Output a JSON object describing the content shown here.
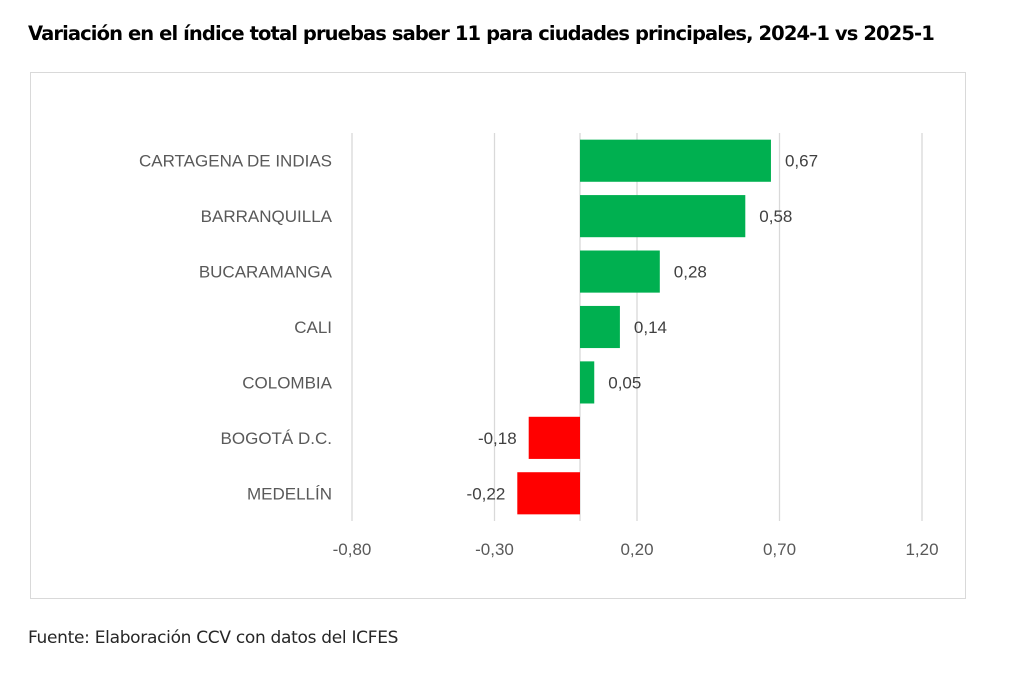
{
  "title": "Variación en el índice total pruebas saber 11 para ciudades principales, 2024-1 vs 2025-1",
  "source": "Fuente: Elaboración CCV con datos del ICFES",
  "colors": {
    "positive": "#00B050",
    "negative": "#FF0000",
    "grid": "#d9d9d9"
  },
  "chart_data": {
    "type": "bar",
    "orientation": "horizontal",
    "title": "Variación en el índice total pruebas saber 11 para ciudades principales, 2024-1 vs 2025-1",
    "xlabel": "",
    "ylabel": "",
    "categories": [
      "CARTAGENA DE INDIAS",
      "BARRANQUILLA",
      "BUCARAMANGA",
      "CALI",
      "COLOMBIA",
      "BOGOTÁ D.C.",
      "MEDELLÍN"
    ],
    "values": [
      0.67,
      0.58,
      0.28,
      0.14,
      0.05,
      -0.18,
      -0.22
    ],
    "value_labels": [
      "0,67",
      "0,58",
      "0,28",
      "0,14",
      "0,05",
      "-0,18",
      "-0,22"
    ],
    "xlim": [
      -0.8,
      1.2
    ],
    "xticks": [
      -0.8,
      -0.3,
      0.2,
      0.7,
      1.2
    ],
    "xtick_labels": [
      "-0,80",
      "-0,30",
      "0,20",
      "0,70",
      "1,20"
    ],
    "grid": "vertical",
    "legend": "none"
  }
}
